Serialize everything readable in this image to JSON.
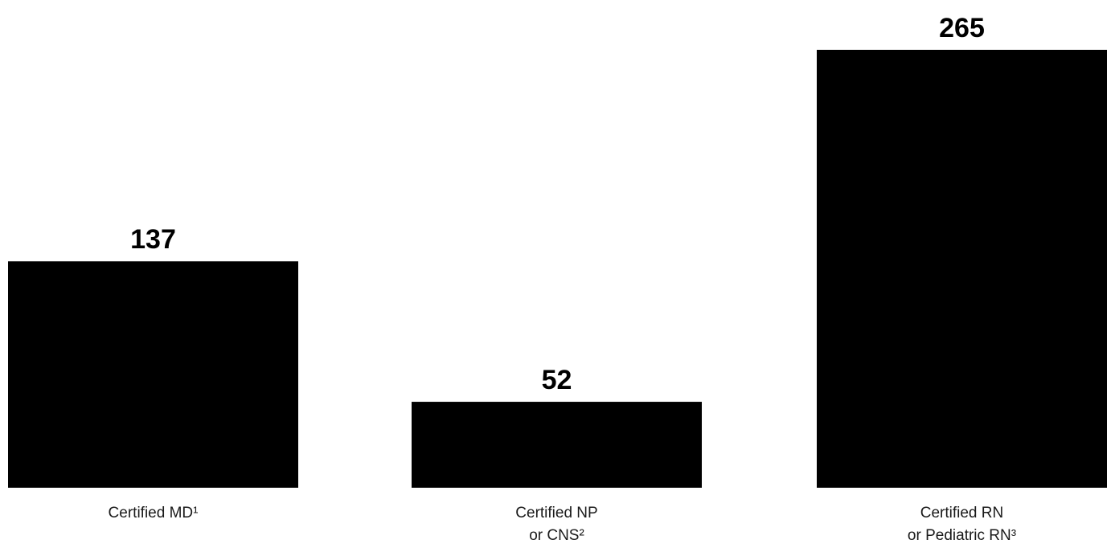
{
  "chart_data": {
    "type": "bar",
    "categories": [
      [
        "Certified MD¹"
      ],
      [
        "Certified NP",
        "or CNS²"
      ],
      [
        "Certified RN",
        "or Pediatric RN³"
      ]
    ],
    "values": [
      137,
      52,
      265
    ],
    "data_labels": [
      "137",
      "52",
      "265"
    ],
    "title": "",
    "xlabel": "",
    "ylabel": "",
    "ylim": [
      0,
      265
    ],
    "grid": false,
    "legend": "none",
    "bar_color": "#000000"
  }
}
